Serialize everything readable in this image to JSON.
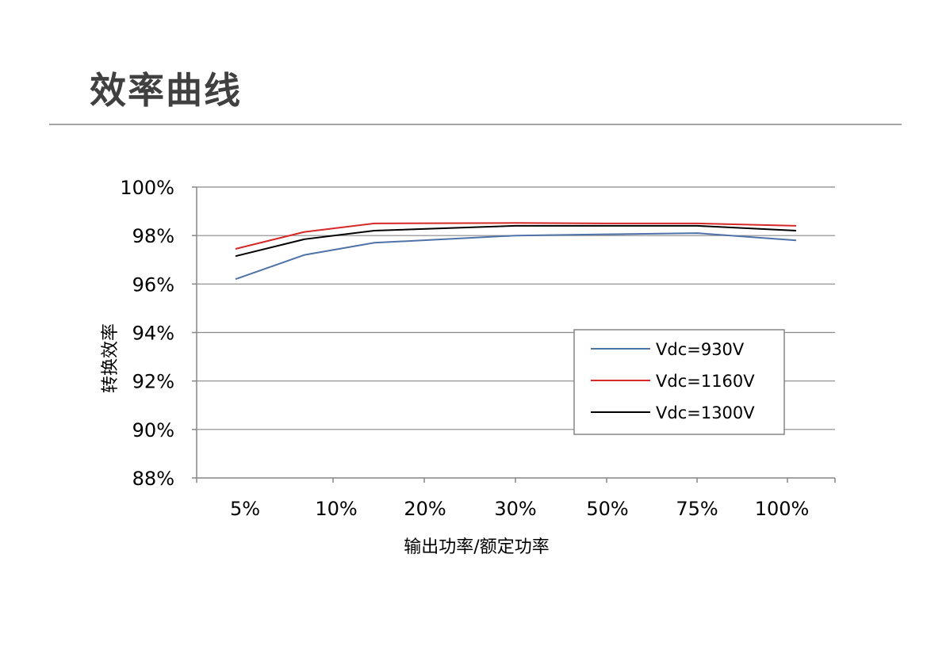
{
  "page": {
    "title": "效率曲线"
  },
  "colors": {
    "grid": "#888888",
    "axis": "#868686",
    "title_rule": "#a6a6a6",
    "legend_border": "#868686"
  },
  "chart_data": {
    "type": "line",
    "title": "",
    "xlabel": "输出功率/额定功率",
    "ylabel": "转换效率",
    "categories": [
      "5%",
      "10%",
      "20%",
      "30%",
      "50%",
      "75%",
      "100%"
    ],
    "ylim": [
      88,
      100
    ],
    "yticks": [
      88,
      90,
      92,
      94,
      96,
      98,
      100
    ],
    "ytick_labels": [
      "88%",
      "90%",
      "92%",
      "94%",
      "96%",
      "98%",
      "100%"
    ],
    "grid": true,
    "legend_position": "lower-right",
    "series": [
      {
        "name": "Vdc=930V",
        "color": "#4f72a8",
        "values": [
          96.2,
          97.2,
          97.7,
          98.0,
          98.05,
          98.1,
          97.8
        ]
      },
      {
        "name": "Vdc=1160V",
        "color": "#d62828",
        "values": [
          97.45,
          98.15,
          98.5,
          98.52,
          98.5,
          98.5,
          98.4
        ]
      },
      {
        "name": "Vdc=1300V",
        "color": "#000000",
        "values": [
          97.15,
          97.85,
          98.2,
          98.4,
          98.4,
          98.4,
          98.2
        ]
      }
    ]
  }
}
